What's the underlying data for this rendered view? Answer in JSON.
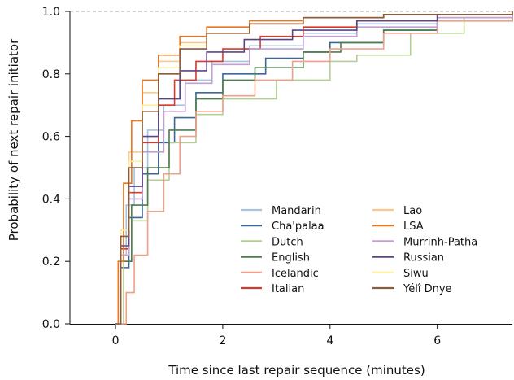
{
  "chart_data": {
    "type": "line",
    "xlabel": "Time since last repair sequence (minutes)",
    "ylabel": "Probability of next repair initiator",
    "xlim": [
      -0.85,
      7.4
    ],
    "ylim": [
      0,
      1.0
    ],
    "xticks": [
      0,
      2,
      4,
      6
    ],
    "yticks": [
      0.0,
      0.2,
      0.4,
      0.6,
      0.8,
      1.0
    ],
    "xtick_labels": [
      "0",
      "2",
      "4",
      "6"
    ],
    "ytick_labels": [
      "0.0",
      "0.2",
      "0.4",
      "0.6",
      "0.8",
      "1.0"
    ],
    "reference_line": {
      "y": 1.0,
      "style": "dashed",
      "color": "#aaaaaa"
    },
    "grid": false,
    "legend_position": "bottom-right",
    "series": [
      {
        "name": "Mandarin",
        "color": "#a6c3e0",
        "points": [
          [
            0,
            0
          ],
          [
            0.1,
            0.22
          ],
          [
            0.2,
            0.38
          ],
          [
            0.35,
            0.5
          ],
          [
            0.6,
            0.62
          ],
          [
            0.9,
            0.7
          ],
          [
            1.3,
            0.78
          ],
          [
            1.8,
            0.84
          ],
          [
            2.5,
            0.89
          ],
          [
            3.5,
            0.93
          ],
          [
            4.5,
            0.96
          ],
          [
            6,
            0.98
          ],
          [
            7.4,
            0.99
          ]
        ]
      },
      {
        "name": "Cha'palaa",
        "color": "#3c6898",
        "points": [
          [
            0,
            0
          ],
          [
            0.1,
            0.18
          ],
          [
            0.25,
            0.34
          ],
          [
            0.5,
            0.48
          ],
          [
            0.8,
            0.58
          ],
          [
            1.1,
            0.66
          ],
          [
            1.5,
            0.74
          ],
          [
            2,
            0.8
          ],
          [
            2.8,
            0.85
          ],
          [
            3.5,
            0.87
          ],
          [
            4,
            0.9
          ],
          [
            5,
            0.94
          ],
          [
            6,
            0.97
          ],
          [
            7.4,
            0.99
          ]
        ]
      },
      {
        "name": "Dutch",
        "color": "#b4cf92",
        "points": [
          [
            0,
            0
          ],
          [
            0.15,
            0.2
          ],
          [
            0.3,
            0.33
          ],
          [
            0.6,
            0.46
          ],
          [
            1,
            0.58
          ],
          [
            1.5,
            0.67
          ],
          [
            2,
            0.72
          ],
          [
            3,
            0.78
          ],
          [
            4,
            0.84
          ],
          [
            4.5,
            0.86
          ],
          [
            5.5,
            0.93
          ],
          [
            6.5,
            0.98
          ],
          [
            7.4,
            0.99
          ]
        ]
      },
      {
        "name": "English",
        "color": "#4d7d4d",
        "points": [
          [
            0,
            0
          ],
          [
            0.1,
            0.2
          ],
          [
            0.3,
            0.38
          ],
          [
            0.6,
            0.5
          ],
          [
            1,
            0.62
          ],
          [
            1.5,
            0.72
          ],
          [
            2,
            0.78
          ],
          [
            2.6,
            0.82
          ],
          [
            3.5,
            0.87
          ],
          [
            4.2,
            0.9
          ],
          [
            5,
            0.94
          ],
          [
            6,
            0.97
          ],
          [
            7.4,
            0.99
          ]
        ]
      },
      {
        "name": "Icelandic",
        "color": "#f0a08a",
        "points": [
          [
            0,
            0
          ],
          [
            0.2,
            0.1
          ],
          [
            0.35,
            0.22
          ],
          [
            0.6,
            0.36
          ],
          [
            0.9,
            0.48
          ],
          [
            1.2,
            0.6
          ],
          [
            1.5,
            0.68
          ],
          [
            2,
            0.73
          ],
          [
            2.6,
            0.78
          ],
          [
            3.3,
            0.84
          ],
          [
            4,
            0.88
          ],
          [
            5,
            0.93
          ],
          [
            6,
            0.97
          ],
          [
            7.4,
            0.99
          ]
        ]
      },
      {
        "name": "Italian",
        "color": "#d63a2e",
        "points": [
          [
            0,
            0
          ],
          [
            0.1,
            0.24
          ],
          [
            0.25,
            0.42
          ],
          [
            0.5,
            0.58
          ],
          [
            0.8,
            0.7
          ],
          [
            1.1,
            0.78
          ],
          [
            1.5,
            0.84
          ],
          [
            2,
            0.88
          ],
          [
            2.7,
            0.92
          ],
          [
            3.5,
            0.95
          ],
          [
            4.5,
            0.97
          ],
          [
            6,
            0.99
          ],
          [
            7.4,
            1.0
          ]
        ]
      },
      {
        "name": "Lao",
        "color": "#f9c98c",
        "points": [
          [
            0,
            0
          ],
          [
            0.1,
            0.3
          ],
          [
            0.25,
            0.55
          ],
          [
            0.5,
            0.74
          ],
          [
            0.8,
            0.84
          ],
          [
            1.2,
            0.9
          ],
          [
            1.7,
            0.93
          ],
          [
            2.5,
            0.96
          ],
          [
            3.5,
            0.98
          ],
          [
            5,
            0.99
          ],
          [
            7.4,
            1.0
          ]
        ]
      },
      {
        "name": "LSA",
        "color": "#e8761d",
        "points": [
          [
            0,
            0
          ],
          [
            0.05,
            0.2
          ],
          [
            0.15,
            0.45
          ],
          [
            0.3,
            0.65
          ],
          [
            0.5,
            0.78
          ],
          [
            0.8,
            0.86
          ],
          [
            1.2,
            0.92
          ],
          [
            1.7,
            0.95
          ],
          [
            2.5,
            0.97
          ],
          [
            3.5,
            0.98
          ],
          [
            5,
            0.99
          ],
          [
            7.4,
            1.0
          ]
        ]
      },
      {
        "name": "Murrinh-Patha",
        "color": "#c4a0d2",
        "points": [
          [
            0,
            0
          ],
          [
            0.1,
            0.22
          ],
          [
            0.25,
            0.4
          ],
          [
            0.5,
            0.55
          ],
          [
            0.9,
            0.68
          ],
          [
            1.3,
            0.77
          ],
          [
            1.8,
            0.83
          ],
          [
            2.5,
            0.88
          ],
          [
            3.5,
            0.92
          ],
          [
            4.5,
            0.95
          ],
          [
            6,
            0.98
          ],
          [
            7.4,
            0.99
          ]
        ]
      },
      {
        "name": "Russian",
        "color": "#5b4582",
        "points": [
          [
            0,
            0
          ],
          [
            0.1,
            0.25
          ],
          [
            0.25,
            0.44
          ],
          [
            0.5,
            0.6
          ],
          [
            0.8,
            0.72
          ],
          [
            1.2,
            0.81
          ],
          [
            1.7,
            0.87
          ],
          [
            2.4,
            0.91
          ],
          [
            3.3,
            0.94
          ],
          [
            4.5,
            0.97
          ],
          [
            6,
            0.99
          ],
          [
            7.4,
            1.0
          ]
        ]
      },
      {
        "name": "Siwu",
        "color": "#fcf0a0",
        "points": [
          [
            0,
            0
          ],
          [
            0.1,
            0.3
          ],
          [
            0.25,
            0.52
          ],
          [
            0.5,
            0.7
          ],
          [
            0.8,
            0.82
          ],
          [
            1.2,
            0.89
          ],
          [
            1.7,
            0.93
          ],
          [
            2.5,
            0.96
          ],
          [
            3.5,
            0.98
          ],
          [
            5,
            0.99
          ],
          [
            7.4,
            1.0
          ]
        ]
      },
      {
        "name": "Yélî Dnye",
        "color": "#8c5a3c",
        "points": [
          [
            0,
            0
          ],
          [
            0.1,
            0.28
          ],
          [
            0.25,
            0.5
          ],
          [
            0.5,
            0.68
          ],
          [
            0.8,
            0.8
          ],
          [
            1.2,
            0.88
          ],
          [
            1.7,
            0.93
          ],
          [
            2.5,
            0.96
          ],
          [
            3.5,
            0.98
          ],
          [
            5,
            0.99
          ],
          [
            7.4,
            1.0
          ]
        ]
      }
    ]
  }
}
